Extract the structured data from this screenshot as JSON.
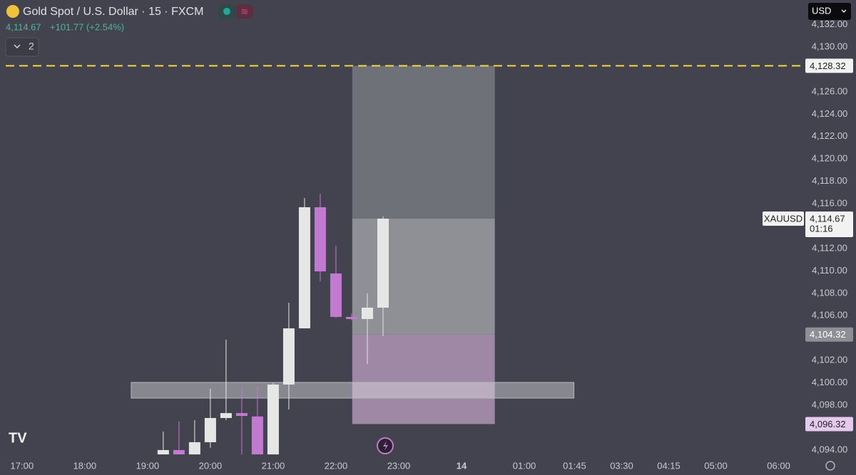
{
  "chart_data": {
    "type": "candlestick",
    "title": "Gold Spot / U.S. Dollar · 15 · FXCM",
    "change": "+101.77 (+2.54%)",
    "indicator_count": "2",
    "currency": "USD",
    "symbol": "XAUUSD",
    "countdown": "01:16",
    "last": {
      "value": 4114.67,
      "label": "4,114.67"
    },
    "x": [
      19.25,
      19.5,
      19.75,
      20,
      20.25,
      20.5,
      20.75,
      21,
      21.25,
      21.5,
      21.75,
      22,
      22.25,
      22.5,
      22.75
    ],
    "open": [
      4093.61,
      4094.0,
      4093.61,
      4094.7,
      4096.86,
      4097.3,
      4097.0,
      4093.61,
      4099.85,
      4104.87,
      4115.69,
      4109.77,
      4105.89,
      4105.7,
      4106.72
    ],
    "high": [
      4095.65,
      4096.54,
      4096.67,
      4099.47,
      4103.86,
      4099.53,
      4099.66,
      4100.0,
      4107.16,
      4116.51,
      4116.9,
      4112.25,
      4106.2,
      4107.99,
      4114.86
    ],
    "low": [
      4093.61,
      4093.61,
      4093.61,
      4094.2,
      4096.67,
      4093.61,
      4093.61,
      4093.61,
      4097.62,
      4104.87,
      4109.07,
      4105.8,
      4105.6,
      4101.69,
      4104.17
    ],
    "close": [
      4094.0,
      4093.61,
      4094.7,
      4096.86,
      4097.3,
      4097.05,
      4093.61,
      4099.85,
      4104.87,
      4115.69,
      4109.96,
      4105.89,
      4105.7,
      4106.72,
      4114.67
    ],
    "up_color": "#e6e6e6",
    "down_color": "#c27ad0",
    "xlim": [
      16.65,
      29.43
    ],
    "ylim": [
      4093.17,
      4134.2
    ],
    "xticks": [
      {
        "value": 17,
        "label": "17:00"
      },
      {
        "value": 18,
        "label": "18:00"
      },
      {
        "value": 19,
        "label": "19:00"
      },
      {
        "value": 20,
        "label": "20:00"
      },
      {
        "value": 21,
        "label": "21:00"
      },
      {
        "value": 22,
        "label": "22:00"
      },
      {
        "value": 23,
        "label": "23:00"
      },
      {
        "value": 24,
        "label": "14"
      },
      {
        "value": 25,
        "label": "01:00"
      },
      {
        "value": 25.8,
        "label": "01:45"
      },
      {
        "value": 26.55,
        "label": "03:30"
      },
      {
        "value": 27.3,
        "label": "04:15"
      },
      {
        "value": 28.05,
        "label": "05:00"
      },
      {
        "value": 29.05,
        "label": "06:00"
      }
    ],
    "yticks": [
      {
        "value": 4094,
        "label": "4,094.00"
      },
      {
        "value": 4096,
        "label": "4,096.00"
      },
      {
        "value": 4098,
        "label": "4,098.00"
      },
      {
        "value": 4100,
        "label": "4,100.00"
      },
      {
        "value": 4102,
        "label": "4,102.00"
      },
      {
        "value": 4104,
        "label": "4,104.00"
      },
      {
        "value": 4106,
        "label": "4,106.00"
      },
      {
        "value": 4108,
        "label": "4,108.00"
      },
      {
        "value": 4110,
        "label": "4,110.00"
      },
      {
        "value": 4112,
        "label": "4,112.00"
      },
      {
        "value": 4114,
        "label": "4,114.00"
      },
      {
        "value": 4116,
        "label": "4,116.00"
      },
      {
        "value": 4118,
        "label": "4,118.00"
      },
      {
        "value": 4120,
        "label": "4,120.00"
      },
      {
        "value": 4122,
        "label": "4,122.00"
      },
      {
        "value": 4124,
        "label": "4,124.00"
      },
      {
        "value": 4126,
        "label": "4,126.00"
      },
      {
        "value": 4128,
        "label": "4,128.00"
      },
      {
        "value": 4130,
        "label": "4,130.00"
      },
      {
        "value": 4132,
        "label": "4,132.00"
      }
    ],
    "alert_line": {
      "value": 4128.32,
      "label": "4,128.32",
      "color": "#f5d742"
    },
    "zone": {
      "x": [
        18.74,
        25.79
      ],
      "y": [
        4098.64,
        4100.04
      ]
    },
    "position": {
      "x": [
        22.26,
        24.53
      ],
      "target": {
        "value": 4128.32,
        "label": "4,128.32"
      },
      "entry": {
        "value": 4104.32,
        "label": "4,104.32"
      },
      "stop": {
        "value": 4096.32,
        "label": "4,096.32"
      }
    }
  }
}
